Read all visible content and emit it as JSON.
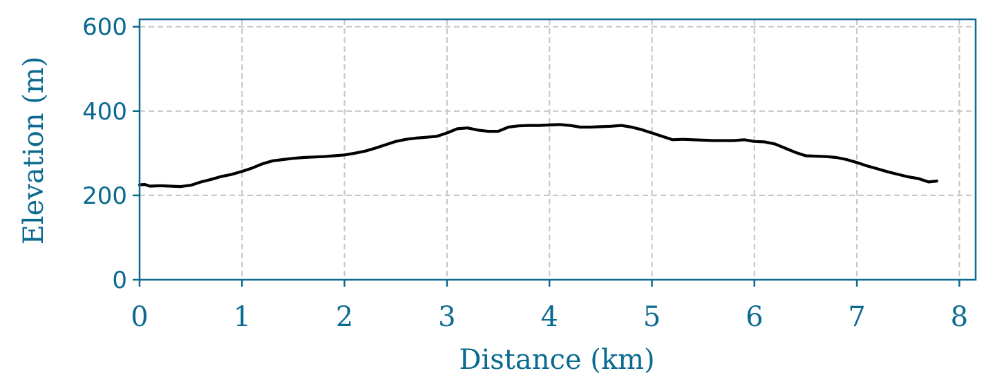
{
  "chart_data": {
    "type": "line",
    "xlabel": "Distance (km)",
    "ylabel": "Elevation (m)",
    "xlim": [
      0,
      8.15
    ],
    "ylim": [
      0,
      620
    ],
    "x_ticks": [
      0,
      1,
      2,
      3,
      4,
      5,
      6,
      7,
      8
    ],
    "x_tick_labels": [
      "0",
      "1",
      "2",
      "3",
      "4",
      "5",
      "6",
      "7",
      "8"
    ],
    "y_ticks": [
      0,
      200,
      400,
      600
    ],
    "y_tick_labels": [
      "0",
      "200",
      "400",
      "600"
    ],
    "grid": true,
    "colors": {
      "axis": "#0b6a8f",
      "grid": "#c8c8c8",
      "line": "#000000"
    },
    "series": [
      {
        "color": "#000000",
        "x": [
          0.0,
          0.05,
          0.1,
          0.2,
          0.3,
          0.4,
          0.5,
          0.6,
          0.7,
          0.8,
          0.9,
          1.0,
          1.1,
          1.2,
          1.3,
          1.4,
          1.5,
          1.6,
          1.7,
          1.8,
          1.9,
          2.0,
          2.1,
          2.2,
          2.3,
          2.4,
          2.5,
          2.6,
          2.7,
          2.8,
          2.9,
          3.0,
          3.1,
          3.2,
          3.3,
          3.4,
          3.5,
          3.6,
          3.7,
          3.8,
          3.9,
          4.0,
          4.1,
          4.2,
          4.3,
          4.4,
          4.5,
          4.6,
          4.7,
          4.8,
          4.9,
          5.0,
          5.1,
          5.2,
          5.3,
          5.4,
          5.5,
          5.6,
          5.7,
          5.8,
          5.9,
          6.0,
          6.1,
          6.2,
          6.3,
          6.4,
          6.5,
          6.6,
          6.7,
          6.8,
          6.9,
          7.0,
          7.1,
          7.2,
          7.3,
          7.4,
          7.5,
          7.6,
          7.7,
          7.78
        ],
        "y": [
          225,
          226,
          222,
          223,
          222,
          221,
          224,
          232,
          238,
          245,
          250,
          257,
          265,
          275,
          282,
          285,
          288,
          290,
          291,
          292,
          294,
          296,
          300,
          305,
          312,
          320,
          328,
          333,
          336,
          338,
          340,
          348,
          358,
          360,
          355,
          352,
          352,
          362,
          365,
          366,
          366,
          367,
          368,
          366,
          362,
          362,
          363,
          364,
          366,
          362,
          356,
          348,
          340,
          332,
          333,
          332,
          331,
          330,
          330,
          330,
          332,
          328,
          327,
          322,
          312,
          302,
          294,
          293,
          292,
          290,
          285,
          278,
          270,
          263,
          256,
          250,
          244,
          240,
          232,
          234
        ]
      }
    ]
  }
}
